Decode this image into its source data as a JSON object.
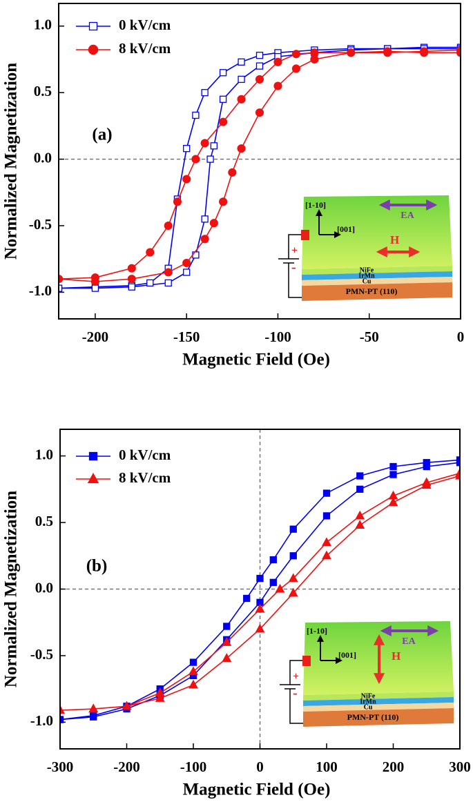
{
  "chart_data": [
    {
      "type": "line",
      "x_label": "Magnetic Field (Oe)",
      "y_label": "Normalized Magnetization",
      "annotation": "(a)",
      "xlim": [
        -220,
        0
      ],
      "xticks": [
        -200,
        -150,
        -100,
        -50,
        0
      ],
      "ylim": [
        -1.2,
        1.17
      ],
      "yticks": [
        {
          "value": -1.0,
          "label": "-1.0"
        },
        -0.5,
        {
          "value": 0.0,
          "label": "0.0"
        },
        0.5,
        {
          "value": 1.0,
          "label": "1.0"
        }
      ],
      "hlines": [
        0
      ],
      "vlines": [],
      "series": [
        {
          "name": "0 kV/cm",
          "color": "#0000ee",
          "marker": "square",
          "filled": false,
          "x": [
            0,
            -20,
            -40,
            -60,
            -80,
            -100,
            -110,
            -120,
            -130,
            -140,
            -145,
            -150,
            -155,
            -160,
            -170,
            -180,
            -200,
            -220,
            -220,
            -200,
            -180,
            -160,
            -150,
            -145,
            -140,
            -137,
            -135,
            -130,
            -120,
            -110,
            -100,
            -80,
            -60,
            -40,
            -20,
            0
          ],
          "values": [
            0.84,
            0.84,
            0.83,
            0.83,
            0.82,
            0.8,
            0.78,
            0.73,
            0.65,
            0.5,
            0.33,
            0.08,
            -0.3,
            -0.82,
            -0.93,
            -0.95,
            -0.96,
            -0.97,
            -0.97,
            -0.97,
            -0.96,
            -0.93,
            -0.85,
            -0.72,
            -0.45,
            0.0,
            0.1,
            0.45,
            0.6,
            0.7,
            0.77,
            0.8,
            0.82,
            0.83,
            0.83,
            0.83
          ]
        },
        {
          "name": "8 kV/cm",
          "color": "#ee1111",
          "marker": "circle",
          "filled": true,
          "x": [
            0,
            -20,
            -40,
            -60,
            -80,
            -90,
            -100,
            -110,
            -120,
            -130,
            -140,
            -145,
            -150,
            -155,
            -160,
            -170,
            -180,
            -200,
            -220,
            -220,
            -200,
            -180,
            -160,
            -150,
            -140,
            -135,
            -130,
            -125,
            -120,
            -110,
            -100,
            -90,
            -80,
            -60,
            -40,
            -20,
            0
          ],
          "values": [
            0.82,
            0.81,
            0.8,
            0.8,
            0.8,
            0.79,
            0.73,
            0.6,
            0.45,
            0.28,
            0.12,
            0.0,
            -0.15,
            -0.32,
            -0.5,
            -0.7,
            -0.82,
            -0.89,
            -0.9,
            -0.9,
            -0.92,
            -0.9,
            -0.85,
            -0.78,
            -0.6,
            -0.48,
            -0.32,
            -0.1,
            0.08,
            0.35,
            0.55,
            0.68,
            0.75,
            0.8,
            0.81,
            0.8,
            0.8
          ]
        }
      ],
      "inset": {
        "axis_vertical": "[1-10]",
        "axis_horizontal": "[001]",
        "easy_axis": "EA",
        "field": "H",
        "field_direction": "horizontal",
        "layers": [
          "NiFe",
          "IrMn",
          "Cu",
          "PMN-PT (110)"
        ],
        "positive": "+",
        "negative": "-"
      }
    },
    {
      "type": "line",
      "x_label": "Magnetic Field (Oe)",
      "y_label": "Normalized Magnetization",
      "annotation": "(b)",
      "xlim": [
        -300,
        300
      ],
      "xticks": [
        -300,
        -200,
        -100,
        0,
        100,
        200,
        300
      ],
      "ylim": [
        -1.2,
        1.2
      ],
      "yticks": [
        {
          "value": -1.0,
          "label": "-1.0"
        },
        -0.5,
        {
          "value": 0.0,
          "label": "0.0"
        },
        0.5,
        {
          "value": 1.0,
          "label": "1.0"
        }
      ],
      "hlines": [
        0
      ],
      "vlines": [
        0
      ],
      "series": [
        {
          "name": "0 kV/cm",
          "color": "#0000ee",
          "marker": "square",
          "filled": true,
          "x": [
            300,
            250,
            200,
            150,
            100,
            50,
            20,
            0,
            -20,
            -50,
            -100,
            -150,
            -200,
            -250,
            -300,
            -300,
            -250,
            -200,
            -150,
            -100,
            -50,
            0,
            20,
            50,
            100,
            150,
            200,
            250,
            300
          ],
          "values": [
            0.97,
            0.95,
            0.92,
            0.85,
            0.72,
            0.45,
            0.22,
            0.08,
            -0.07,
            -0.28,
            -0.55,
            -0.75,
            -0.88,
            -0.95,
            -0.98,
            -0.98,
            -0.96,
            -0.9,
            -0.8,
            -0.65,
            -0.38,
            -0.1,
            0.05,
            0.25,
            0.55,
            0.75,
            0.86,
            0.92,
            0.95
          ]
        },
        {
          "name": "8 kV/cm",
          "color": "#ee1111",
          "marker": "triangle",
          "filled": true,
          "x": [
            300,
            250,
            200,
            150,
            100,
            50,
            30,
            0,
            -50,
            -100,
            -150,
            -200,
            -250,
            -300,
            -300,
            -250,
            -200,
            -150,
            -100,
            -50,
            0,
            50,
            100,
            150,
            200,
            250,
            300
          ],
          "values": [
            0.87,
            0.8,
            0.7,
            0.55,
            0.35,
            0.08,
            0.0,
            -0.15,
            -0.4,
            -0.62,
            -0.78,
            -0.88,
            -0.9,
            -0.91,
            -0.91,
            -0.9,
            -0.88,
            -0.82,
            -0.72,
            -0.52,
            -0.3,
            -0.03,
            0.25,
            0.48,
            0.65,
            0.78,
            0.85
          ]
        }
      ],
      "inset": {
        "axis_vertical": "[1-10]",
        "axis_horizontal": "[001]",
        "easy_axis": "EA",
        "field": "H",
        "field_direction": "vertical",
        "layers": [
          "NiFe",
          "IrMn",
          "Cu",
          "PMN-PT (110)"
        ],
        "positive": "+",
        "negative": "-"
      }
    }
  ]
}
